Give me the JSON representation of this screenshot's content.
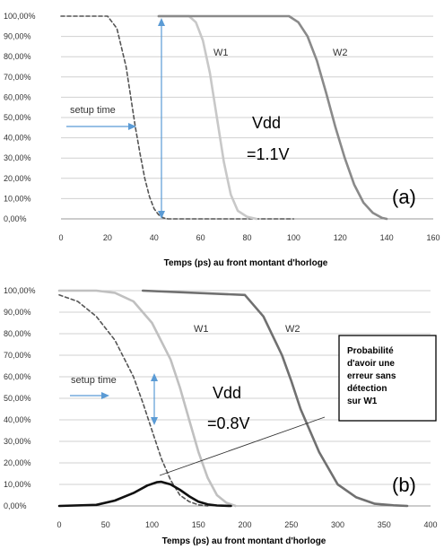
{
  "figures": [
    {
      "xlabel": "Temps (ps) au front montant d'horloge",
      "panel_label": "(a)",
      "vdd_line1": "Vdd",
      "vdd_line2": "=1.1V",
      "setup_label": "setup time",
      "w1_label": "W1",
      "w2_label": "W2"
    },
    {
      "xlabel": "Temps (ps) au front montant d'horloge",
      "panel_label": "(b)",
      "vdd_line1": "Vdd",
      "vdd_line2": "=0.8V",
      "setup_label": "setup time",
      "w1_label": "W1",
      "w2_label": "W2",
      "note_lines": [
        "Probabilité",
        "d'avoir une",
        "erreur sans",
        "détection",
        "sur W1"
      ]
    }
  ],
  "chart_data": [
    {
      "type": "line",
      "title": "",
      "xlabel": "Temps (ps) au front montant d'horloge",
      "ylabel": "",
      "xlim": [
        0,
        160
      ],
      "ylim": [
        0,
        100
      ],
      "xticks": [
        0,
        20,
        40,
        60,
        80,
        100,
        120,
        140,
        160
      ],
      "yticks": [
        "0,00%",
        "10,00%",
        "20,00%",
        "30,00%",
        "40,00%",
        "50,00%",
        "60,00%",
        "70,00%",
        "80,00%",
        "90,00%",
        "100,00%"
      ],
      "grid": true,
      "series": [
        {
          "color": "#555555",
          "dashed": true,
          "x": [
            0,
            20,
            24,
            28,
            30,
            32,
            34,
            36,
            38,
            40,
            42,
            44,
            46,
            100
          ],
          "y": [
            100,
            100,
            94,
            75,
            60,
            45,
            32,
            20,
            11,
            5,
            2,
            0.5,
            0,
            0
          ]
        },
        {
          "name": "W1",
          "color": "#c8c8c8",
          "dashed": false,
          "x": [
            42,
            55,
            58,
            61,
            64,
            67,
            70,
            73,
            76,
            80,
            84
          ],
          "y": [
            100,
            100,
            97,
            88,
            72,
            50,
            28,
            12,
            4,
            1,
            0
          ]
        },
        {
          "name": "W2",
          "color": "#8a8a8a",
          "dashed": false,
          "x": [
            42,
            98,
            102,
            106,
            110,
            114,
            118,
            122,
            126,
            130,
            134,
            138,
            140
          ],
          "y": [
            100,
            100,
            97,
            90,
            78,
            62,
            45,
            30,
            17,
            8,
            3,
            0.5,
            0
          ]
        }
      ]
    },
    {
      "type": "line",
      "title": "",
      "xlabel": "Temps (ps) au front montant d'horloge",
      "ylabel": "",
      "xlim": [
        0,
        400
      ],
      "ylim": [
        0,
        100
      ],
      "xticks": [
        0,
        50,
        100,
        150,
        200,
        250,
        300,
        350,
        400
      ],
      "yticks": [
        "0,00%",
        "10,00%",
        "20,00%",
        "30,00%",
        "40,00%",
        "50,00%",
        "60,00%",
        "70,00%",
        "80,00%",
        "90,00%",
        "100,00%"
      ],
      "grid": true,
      "series": [
        {
          "color": "#555555",
          "dashed": true,
          "x": [
            0,
            20,
            40,
            60,
            80,
            90,
            100,
            110,
            120,
            130,
            140,
            150,
            160
          ],
          "y": [
            98,
            95,
            88,
            77,
            60,
            48,
            35,
            22,
            12,
            5,
            2,
            0.5,
            0
          ]
        },
        {
          "name": "W1",
          "color": "#c0c0c0",
          "dashed": false,
          "x": [
            0,
            40,
            60,
            80,
            100,
            120,
            130,
            140,
            150,
            160,
            170,
            180,
            190
          ],
          "y": [
            100,
            100,
            99,
            95,
            85,
            68,
            55,
            40,
            25,
            13,
            5,
            1.5,
            0
          ]
        },
        {
          "name": "W2",
          "color": "#707070",
          "dashed": false,
          "x": [
            90,
            200,
            220,
            240,
            250,
            260,
            280,
            300,
            320,
            340,
            360,
            375
          ],
          "y": [
            100,
            98,
            88,
            70,
            58,
            45,
            25,
            10,
            4,
            1,
            0.3,
            0
          ]
        },
        {
          "color": "#111111",
          "dashed": false,
          "x": [
            0,
            40,
            60,
            80,
            95,
            105,
            110,
            120,
            130,
            140,
            150,
            160,
            170,
            185
          ],
          "y": [
            0,
            0.5,
            2.5,
            6,
            9.5,
            11,
            11.2,
            10,
            7.5,
            4.5,
            2,
            0.7,
            0.2,
            0
          ]
        }
      ]
    }
  ]
}
